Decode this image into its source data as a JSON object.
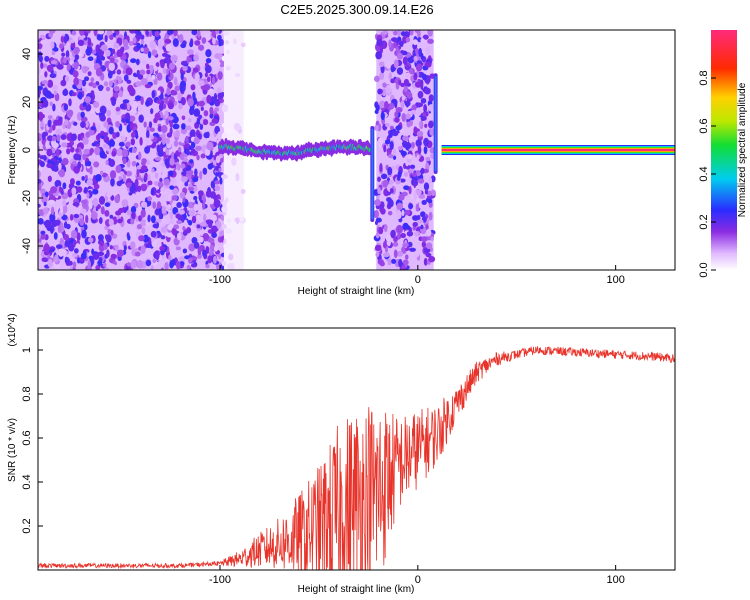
{
  "chart_data": [
    {
      "type": "heatmap",
      "title": "C2E5.2025.300.09.14.E26",
      "xlabel": "Height of straight line (km)",
      "ylabel": "Frequency (Hz)",
      "xlim": [
        -192,
        130
      ],
      "ylim": [
        -50,
        50
      ],
      "xticks": [
        -100,
        0,
        100
      ],
      "yticks": [
        -40,
        -20,
        0,
        20,
        40
      ],
      "colorbar": {
        "label": "Normalized spectral amplitude",
        "range": [
          0,
          1
        ],
        "ticks": [
          0.0,
          0.2,
          0.4,
          0.6,
          0.8
        ]
      },
      "regions": [
        {
          "name": "noise",
          "x_range": [
            -192,
            -98
          ],
          "level": 0.2
        },
        {
          "name": "faint noise",
          "x_range": [
            -98,
            -88
          ],
          "level": 0.05
        },
        {
          "name": "track",
          "x_range": [
            -100,
            -24
          ],
          "freq_hz": 0,
          "level": 0.45
        },
        {
          "name": "noise",
          "x_range": [
            -21,
            8
          ],
          "level": 0.2
        },
        {
          "name": "vertical streak",
          "x_value": -23,
          "freq_range_hz": [
            -30,
            10
          ],
          "level": 0.2
        },
        {
          "name": "vertical streak",
          "x_value": 9,
          "freq_range_hz": [
            -10,
            32
          ],
          "level": 0.2
        },
        {
          "name": "steady line",
          "x_range": [
            12,
            130
          ],
          "freq_hz": 0,
          "level": 1.0
        }
      ]
    },
    {
      "type": "line",
      "xlabel": "Height of straight line (km)",
      "ylabel": "SNR (10 * v/v)",
      "yscale_label": "(x10^4)",
      "xlim": [
        -192,
        130
      ],
      "ylim": [
        0,
        1.1
      ],
      "xticks": [
        -100,
        0,
        100
      ],
      "yticks": [
        0.2,
        0.4,
        0.6,
        0.8,
        1.0
      ],
      "color": "#e8332a",
      "series": [
        {
          "name": "SNR",
          "x": [
            -192,
            -150,
            -120,
            -100,
            -90,
            -80,
            -70,
            -60,
            -50,
            -40,
            -30,
            -20,
            -10,
            0,
            10,
            20,
            30,
            40,
            50,
            60,
            80,
            100,
            120,
            130
          ],
          "mean": [
            0.02,
            0.02,
            0.02,
            0.03,
            0.05,
            0.09,
            0.12,
            0.15,
            0.2,
            0.25,
            0.3,
            0.35,
            0.48,
            0.55,
            0.62,
            0.76,
            0.9,
            0.96,
            0.98,
            1.0,
            0.99,
            0.98,
            0.97,
            0.96
          ],
          "spread": [
            0.01,
            0.01,
            0.01,
            0.01,
            0.04,
            0.08,
            0.12,
            0.2,
            0.28,
            0.42,
            0.48,
            0.45,
            0.22,
            0.18,
            0.14,
            0.08,
            0.05,
            0.03,
            0.02,
            0.02,
            0.02,
            0.02,
            0.02,
            0.02
          ]
        }
      ]
    }
  ]
}
